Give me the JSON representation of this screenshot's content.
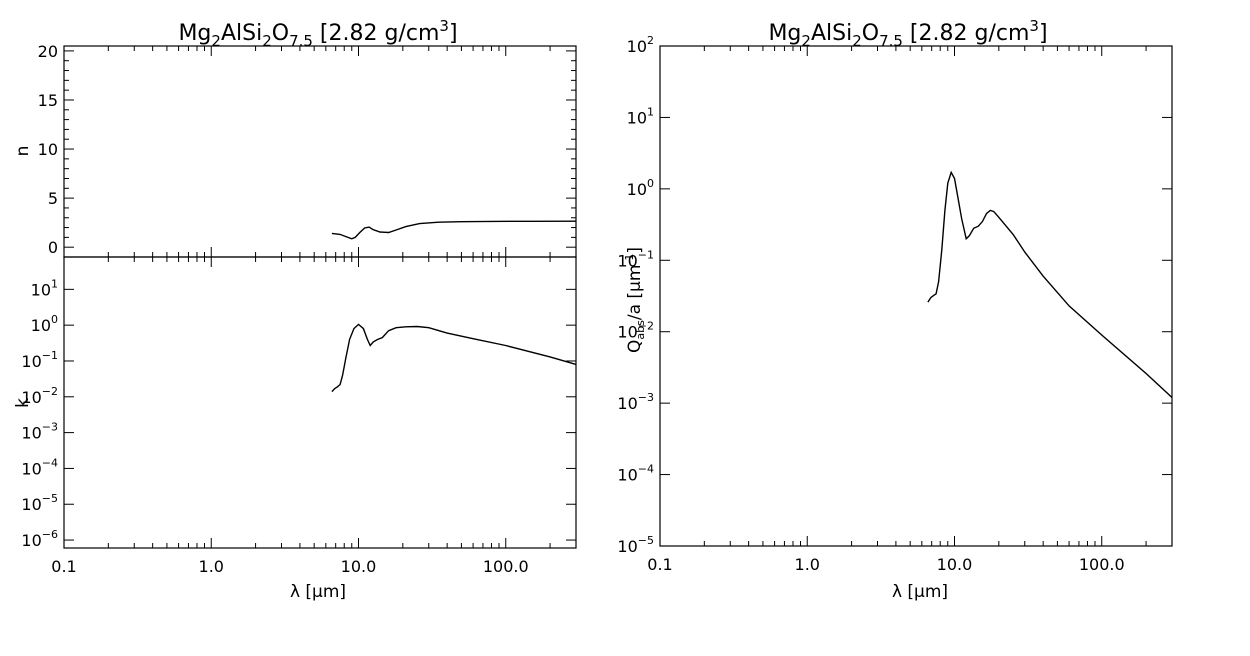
{
  "chart_data": [
    {
      "panel": "n",
      "type": "line",
      "title_parts": [
        {
          "text": "Mg",
          "sub": false
        },
        {
          "text": "2",
          "sub": true
        },
        {
          "text": "AlSi",
          "sub": false
        },
        {
          "text": "2",
          "sub": true
        },
        {
          "text": "O",
          "sub": false
        },
        {
          "text": "7.5",
          "sub": true
        },
        {
          "text": " [2.82 g/cm",
          "sub": false
        },
        {
          "text": "3",
          "sup": true
        },
        {
          "text": "]",
          "sub": false
        }
      ],
      "ylabel": "n",
      "xscale": "log",
      "yscale": "linear",
      "xlim": [
        0.1,
        300
      ],
      "ylim": [
        -1,
        20.5
      ],
      "yticks": [
        0,
        5,
        10,
        15,
        20
      ],
      "ytick_labels": [
        "0",
        "5",
        "10",
        "15",
        "20"
      ],
      "x": [
        6.6,
        7.5,
        8.3,
        9.0,
        9.5,
        10.2,
        11.0,
        11.8,
        12.5,
        14.0,
        16.0,
        18.0,
        21.0,
        26.0,
        35.0,
        50.0,
        80.0,
        150.0,
        300.0
      ],
      "y": [
        1.4,
        1.3,
        1.05,
        0.85,
        1.0,
        1.5,
        1.95,
        2.05,
        1.8,
        1.55,
        1.5,
        1.75,
        2.1,
        2.4,
        2.55,
        2.6,
        2.63,
        2.64,
        2.65
      ]
    },
    {
      "panel": "k",
      "type": "line",
      "ylabel": "k",
      "xlabel": "λ [μm]",
      "xscale": "log",
      "yscale": "log",
      "xlim": [
        0.1,
        300
      ],
      "ylim": [
        6e-07,
        80
      ],
      "yticks_exp": [
        -6,
        -5,
        -4,
        -3,
        -2,
        -1,
        0,
        1
      ],
      "x": [
        6.6,
        6.9,
        7.2,
        7.5,
        7.8,
        8.2,
        8.7,
        9.3,
        10.0,
        10.8,
        11.5,
        12.0,
        12.6,
        13.5,
        14.5,
        16.0,
        18.0,
        21.0,
        25.0,
        30.0,
        40.0,
        60.0,
        100.0,
        200.0,
        300.0
      ],
      "y": [
        0.014,
        0.017,
        0.019,
        0.022,
        0.04,
        0.12,
        0.4,
        0.8,
        1.05,
        0.8,
        0.4,
        0.27,
        0.34,
        0.4,
        0.45,
        0.7,
        0.85,
        0.9,
        0.92,
        0.85,
        0.6,
        0.42,
        0.27,
        0.13,
        0.08
      ]
    },
    {
      "panel": "qabs",
      "type": "line",
      "title_parts": [
        {
          "text": "Mg",
          "sub": false
        },
        {
          "text": "2",
          "sub": true
        },
        {
          "text": "AlSi",
          "sub": false
        },
        {
          "text": "2",
          "sub": true
        },
        {
          "text": "O",
          "sub": false
        },
        {
          "text": "7.5",
          "sub": true
        },
        {
          "text": " [2.82 g/cm",
          "sub": false
        },
        {
          "text": "3",
          "sup": true
        },
        {
          "text": "]",
          "sub": false
        }
      ],
      "ylabel": "Q_abs/a [μm^-1]",
      "xlabel": "λ [μm]",
      "xscale": "log",
      "yscale": "log",
      "xlim": [
        0.1,
        300
      ],
      "ylim": [
        1e-05,
        100
      ],
      "yticks_exp": [
        -5,
        -4,
        -3,
        -2,
        -1,
        0,
        1,
        2
      ],
      "x": [
        6.6,
        6.9,
        7.2,
        7.5,
        7.8,
        8.2,
        8.6,
        9.0,
        9.5,
        10.0,
        10.5,
        11.2,
        12.0,
        12.6,
        13.5,
        14.5,
        15.5,
        16.5,
        17.5,
        18.5,
        20.0,
        25.0,
        30.0,
        40.0,
        60.0,
        100.0,
        200.0,
        300.0
      ],
      "y": [
        0.026,
        0.03,
        0.032,
        0.034,
        0.05,
        0.14,
        0.5,
        1.2,
        1.7,
        1.4,
        0.8,
        0.38,
        0.2,
        0.22,
        0.28,
        0.3,
        0.35,
        0.45,
        0.5,
        0.48,
        0.4,
        0.23,
        0.13,
        0.06,
        0.023,
        0.009,
        0.0026,
        0.0012
      ]
    }
  ],
  "xaxis": {
    "ticks": [
      0.1,
      1.0,
      10.0,
      100.0
    ],
    "tick_labels": [
      "0.1",
      "1.0",
      "10.0",
      "100.0"
    ]
  }
}
